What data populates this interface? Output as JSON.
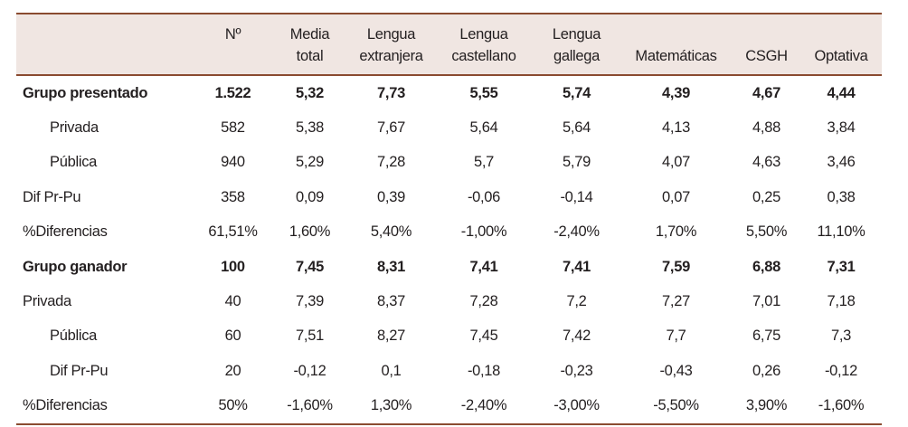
{
  "headers": [
    {
      "l1": "",
      "l2": ""
    },
    {
      "l1": "Nº",
      "l2": ""
    },
    {
      "l1": "Media",
      "l2": "total"
    },
    {
      "l1": "Lengua",
      "l2": "extranjera"
    },
    {
      "l1": "Lengua",
      "l2": "castellano"
    },
    {
      "l1": "Lengua",
      "l2": "gallega"
    },
    {
      "l1": "",
      "l2": "Matemáticas"
    },
    {
      "l1": "",
      "l2": "CSGH"
    },
    {
      "l1": "",
      "l2": "Optativa"
    }
  ],
  "rows": [
    {
      "cells": [
        "Grupo presentado",
        "1.522",
        "5,32",
        "7,73",
        "5,55",
        "5,74",
        "4,39",
        "4,67",
        "4,44"
      ]
    },
    {
      "cells": [
        "Privada",
        "582",
        "5,38",
        "7,67",
        "5,64",
        "5,64",
        "4,13",
        "4,88",
        "3,84"
      ]
    },
    {
      "cells": [
        "Pública",
        "940",
        "5,29",
        "7,28",
        "5,7",
        "5,79",
        "4,07",
        "4,63",
        "3,46"
      ]
    },
    {
      "cells": [
        "Dif Pr-Pu",
        "358",
        "0,09",
        "0,39",
        "-0,06",
        "-0,14",
        "0,07",
        "0,25",
        "0,38"
      ]
    },
    {
      "cells": [
        "%Diferencias",
        "61,51%",
        "1,60%",
        "5,40%",
        "-1,00%",
        "-2,40%",
        "1,70%",
        "5,50%",
        "11,10%"
      ]
    },
    {
      "cells": [
        "Grupo ganador",
        "100",
        "7,45",
        "8,31",
        "7,41",
        "7,41",
        "7,59",
        "6,88",
        "7,31"
      ]
    },
    {
      "cells": [
        "Privada",
        "40",
        "7,39",
        "8,37",
        "7,28",
        "7,2",
        "7,27",
        "7,01",
        "7,18"
      ]
    },
    {
      "cells": [
        "Pública",
        "60",
        "7,51",
        "8,27",
        "7,45",
        "7,42",
        "7,7",
        "6,75",
        "7,3"
      ]
    },
    {
      "cells": [
        "Dif Pr-Pu",
        "20",
        "-0,12",
        "0,1",
        "-0,18",
        "-0,23",
        "-0,43",
        "0,26",
        "-0,12"
      ]
    },
    {
      "cells": [
        "%Diferencias",
        "50%",
        "-1,60%",
        "1,30%",
        "-2,40%",
        "-3,00%",
        "-5,50%",
        "3,90%",
        "-1,60%"
      ]
    }
  ]
}
